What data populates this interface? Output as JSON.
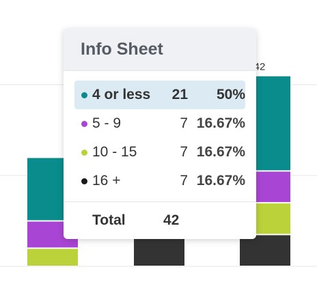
{
  "chart_data": {
    "type": "bar",
    "stacked": true,
    "categories": [
      "",
      "",
      ""
    ],
    "series": [
      {
        "name": "16 +",
        "color": "#333333",
        "values": [
          0,
          7,
          7
        ]
      },
      {
        "name": "10 - 15",
        "color": "#bcd23a",
        "values": [
          4,
          7,
          7
        ]
      },
      {
        "name": "5 - 9",
        "color": "#a945d4",
        "values": [
          6,
          7,
          7
        ]
      },
      {
        "name": "4 or less",
        "color": "#0a8c8c",
        "values": [
          14,
          21,
          21
        ]
      }
    ],
    "data_labels": [
      "",
      "",
      "42"
    ],
    "title": "",
    "xlabel": "",
    "ylabel": "",
    "ylim": [
      0,
      50
    ],
    "grid": true
  },
  "tooltip": {
    "title": "Info Sheet",
    "rows": [
      {
        "label": "4 or less",
        "count": "21",
        "percent": "50%",
        "color": "#0a8c8c",
        "highlighted": true
      },
      {
        "label": "5 - 9",
        "count": "7",
        "percent": "16.67%",
        "color": "#a945d4",
        "highlighted": false
      },
      {
        "label": "10 - 15",
        "count": "7",
        "percent": "16.67%",
        "color": "#bcd23a",
        "highlighted": false
      },
      {
        "label": "16 +",
        "count": "7",
        "percent": "16.67%",
        "color": "#1a1a1a",
        "highlighted": false
      }
    ],
    "total_label": "Total",
    "total_value": "42"
  }
}
